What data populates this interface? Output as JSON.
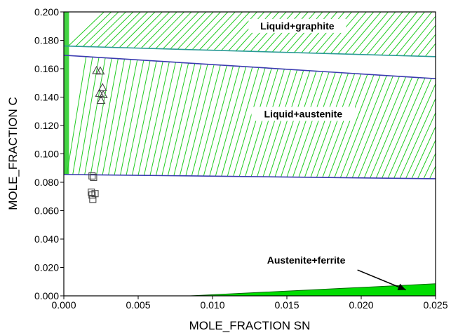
{
  "chart_data": {
    "type": "scatter",
    "title": "",
    "xlabel": "MOLE_FRACTION SN",
    "ylabel": "MOLE_FRACTION C",
    "xlim": [
      0.0,
      0.025
    ],
    "ylim": [
      0.0,
      0.2
    ],
    "x_ticks": [
      "0.000",
      "0.005",
      "0.010",
      "0.015",
      "0.020",
      "0.025"
    ],
    "y_ticks": [
      "0.000",
      "0.020",
      "0.040",
      "0.060",
      "0.080",
      "0.100",
      "0.120",
      "0.140",
      "0.160",
      "0.180",
      "0.200"
    ],
    "grid": false,
    "colors": {
      "tie_lines": "#22cc22",
      "boundary_upper": "#2a9a96",
      "boundary_blue": "#3a3ab0",
      "ferrite_fill": "#00dd00",
      "markers": "#444444"
    },
    "boundaries": [
      {
        "x": [
          0.0,
          0.025
        ],
        "y": [
          0.176,
          0.1685
        ]
      },
      {
        "x": [
          0.0,
          0.025
        ],
        "y": [
          0.1695,
          0.153
        ]
      },
      {
        "x": [
          0.0,
          0.025
        ],
        "y": [
          0.0855,
          0.0825
        ]
      },
      {
        "x": [
          0.0085,
          0.025
        ],
        "y": [
          0.0,
          0.0085
        ]
      }
    ],
    "series": [
      {
        "marker": "triangle",
        "x": [
          0.0022,
          0.00245,
          0.0026,
          0.0024,
          0.00265,
          0.0025
        ],
        "y": [
          0.1585,
          0.1582,
          0.1465,
          0.1425,
          0.1415,
          0.1375
        ]
      },
      {
        "marker": "square",
        "x": [
          0.0019,
          0.002,
          0.00185,
          0.0021,
          0.0019,
          0.00195
        ],
        "y": [
          0.0845,
          0.0835,
          0.073,
          0.072,
          0.071,
          0.068
        ]
      }
    ],
    "annotations": [
      {
        "text": "Liquid+graphite",
        "x": 0.0157,
        "y": 0.1882
      },
      {
        "text": "Liquid+austenite",
        "x": 0.0161,
        "y": 0.1262
      },
      {
        "text": "Austenite+ferrite",
        "x": 0.0163,
        "y": 0.0232,
        "arrow_to": [
          0.023,
          0.0042
        ]
      }
    ]
  }
}
